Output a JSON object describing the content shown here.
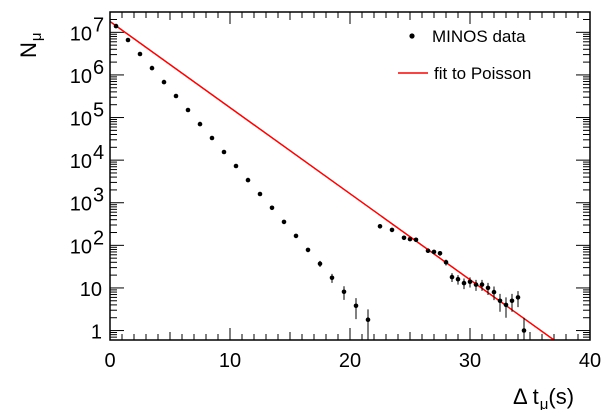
{
  "chart_data": {
    "type": "scatter",
    "xlabel": "Δ t",
    "xlabel_sub": "μ",
    "xlabel_suffix": "(s)",
    "ylabel": "N",
    "ylabel_sub": "μ",
    "xlim": [
      0,
      40
    ],
    "ylim": [
      0.6,
      30000000
    ],
    "yscale": "log",
    "grid": false,
    "legend_position": "top-right",
    "x_ticks": [
      "0",
      "10",
      "20",
      "30",
      "40"
    ],
    "y_ticks": [
      {
        "value": 1,
        "base": "1",
        "exp": ""
      },
      {
        "value": 10,
        "base": "10",
        "exp": ""
      },
      {
        "value": 100,
        "base": "10",
        "exp": "2"
      },
      {
        "value": 1000,
        "base": "10",
        "exp": "3"
      },
      {
        "value": 10000,
        "base": "10",
        "exp": "4"
      },
      {
        "value": 100000,
        "base": "10",
        "exp": "5"
      },
      {
        "value": 1000000,
        "base": "10",
        "exp": "6"
      },
      {
        "value": 10000000,
        "base": "10",
        "exp": "7"
      }
    ],
    "series": [
      {
        "name": "MINOS data",
        "style": "points",
        "color": "#000000",
        "x": [
          0.5,
          1.5,
          2.5,
          3.5,
          4.5,
          5.5,
          6.5,
          7.5,
          8.5,
          9.5,
          10.5,
          11.5,
          12.5,
          13.5,
          14.5,
          15.5,
          16.5,
          17.5,
          18.5,
          19.5,
          20.5,
          21.5,
          22.5,
          23.5,
          24.5,
          25.0,
          25.5,
          26.5,
          27.0,
          27.5,
          28.0,
          28.5,
          29.0,
          29.5,
          30.0,
          30.5,
          31.0,
          31.5,
          32.0,
          32.5,
          33.0,
          33.5,
          34.0,
          34.5
        ],
        "y": [
          14000000,
          6600000,
          3100000,
          1450000,
          680000,
          320000,
          150000,
          70000,
          33000,
          15500,
          7300,
          3400,
          1600,
          760,
          355,
          167,
          78,
          37,
          17.3,
          8.1,
          3.8,
          1.8,
          280,
          230,
          150,
          140,
          135,
          75,
          70,
          65,
          40,
          18,
          16,
          13,
          14,
          12,
          12,
          10,
          8,
          5,
          4,
          5,
          6,
          1
        ]
      },
      {
        "name": "fit to Poisson",
        "style": "line",
        "color": "#ff0000",
        "x": [
          0,
          37
        ],
        "y": [
          18000000,
          0.6
        ]
      }
    ]
  }
}
